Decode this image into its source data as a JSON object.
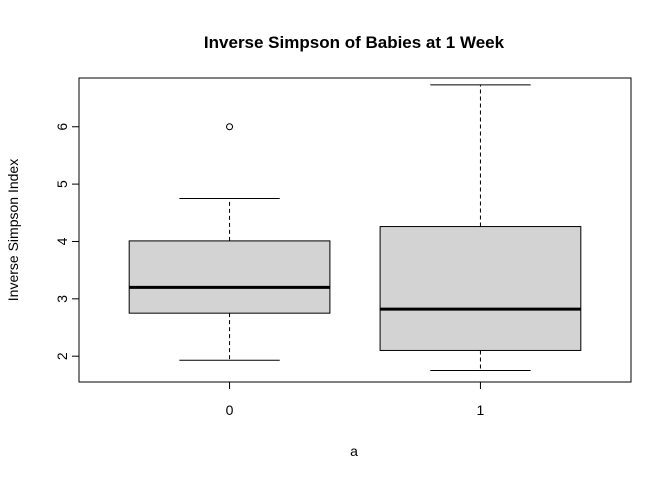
{
  "chart_data": {
    "type": "boxplot",
    "title": "Inverse Simpson of Babies at 1 Week",
    "xlabel": "a",
    "ylabel": "Inverse Simpson Index",
    "categories": [
      "0",
      "1"
    ],
    "ylim": [
      1.55,
      6.85
    ],
    "yticks": [
      2,
      3,
      4,
      5,
      6
    ],
    "box_fill": "#d3d3d3",
    "grid": false,
    "boxes": [
      {
        "category": "0",
        "whisker_low": 1.93,
        "q1": 2.75,
        "median": 3.2,
        "q3": 4.01,
        "whisker_high": 4.75,
        "outliers": [
          6.0
        ]
      },
      {
        "category": "1",
        "whisker_low": 1.75,
        "q1": 2.1,
        "median": 2.82,
        "q3": 4.26,
        "whisker_high": 6.73,
        "outliers": []
      }
    ]
  }
}
